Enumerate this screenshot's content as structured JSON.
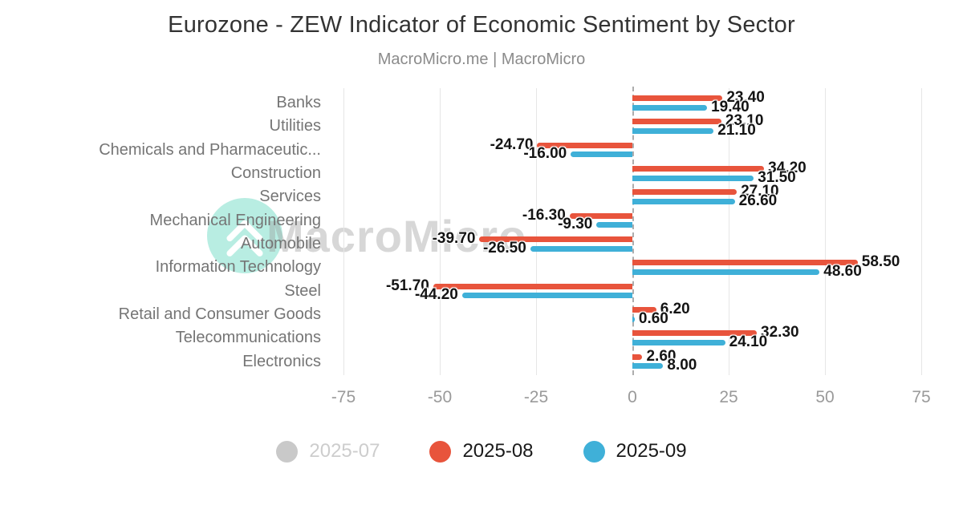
{
  "header": {
    "title": "Eurozone - ZEW Indicator of Economic Sentiment by Sector",
    "subtitle": "MacroMicro.me | MacroMicro"
  },
  "watermark": {
    "text": "MacroMicro",
    "logo": "macromicro-chevron-logo"
  },
  "legend": {
    "items": [
      {
        "label": "2025-07",
        "color": "#c9c9c9",
        "enabled": false
      },
      {
        "label": "2025-08",
        "color": "#e8543c",
        "enabled": true
      },
      {
        "label": "2025-09",
        "color": "#3fb0d8",
        "enabled": true
      }
    ]
  },
  "chart_data": {
    "type": "bar",
    "orientation": "horizontal",
    "title": "Eurozone - ZEW Indicator of Economic Sentiment by Sector",
    "categories": [
      "Banks",
      "Utilities",
      "Chemicals and Pharmaceutic...",
      "Construction",
      "Services",
      "Mechanical Engineering",
      "Automobile",
      "Information Technology",
      "Steel",
      "Retail and Consumer Goods",
      "Telecommunications",
      "Electronics"
    ],
    "series": [
      {
        "name": "2025-07",
        "color": "#c9c9c9",
        "visible": false,
        "values": []
      },
      {
        "name": "2025-08",
        "color": "#e8543c",
        "visible": true,
        "values": [
          23.4,
          23.1,
          -24.7,
          34.2,
          27.1,
          -16.3,
          -39.7,
          58.5,
          -51.7,
          6.2,
          32.3,
          2.6
        ]
      },
      {
        "name": "2025-09",
        "color": "#3fb0d8",
        "visible": true,
        "values": [
          19.4,
          21.1,
          -16.0,
          31.5,
          26.6,
          -9.3,
          -26.5,
          48.6,
          -44.2,
          0.6,
          24.1,
          8.0
        ]
      }
    ],
    "value_label_decimals": 2,
    "xticks": [
      -75,
      -50,
      -25,
      0,
      25,
      50,
      75
    ],
    "xlim": [
      -78.75,
      77.5
    ],
    "grid": true,
    "legend_position": "bottom"
  }
}
